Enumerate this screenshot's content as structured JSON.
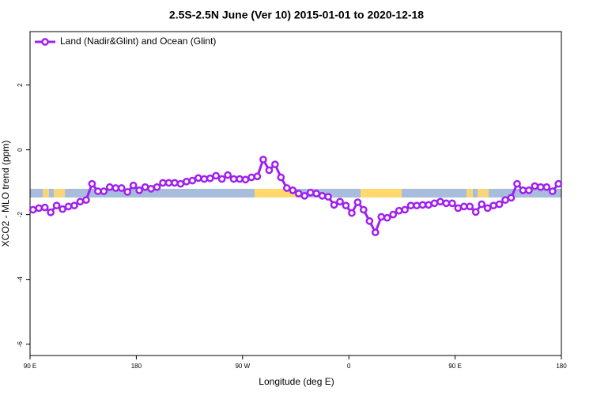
{
  "chart_data": {
    "type": "line",
    "title": "2.5S-2.5N June (Ver 10)   2015-01-01 to 2020-12-18",
    "x_label": "Longitude (deg E)",
    "y_label": "XCO2 - MLO trend (ppm)",
    "xlim": [
      90,
      540
    ],
    "xticks": [
      {
        "value": 90,
        "label": "90 E"
      },
      180,
      {
        "value": 270,
        "label": "90 W"
      },
      {
        "value": 360,
        "label": "0"
      },
      {
        "value": 450,
        "label": "90 E"
      },
      {
        "value": 540,
        "label": "180"
      }
    ],
    "ylim": [
      -6.35,
      3.65
    ],
    "yticks": [
      -6,
      -4,
      -2,
      0,
      2
    ],
    "grid": false,
    "legend": "top-left",
    "x": [
      92.5,
      97.5,
      102.5,
      107.5,
      112.5,
      117.5,
      122.5,
      127.5,
      132.5,
      137.5,
      142.5,
      147.5,
      152.5,
      157.5,
      162.5,
      167.5,
      172.5,
      177.5,
      182.5,
      187.5,
      192.5,
      197.5,
      202.5,
      207.5,
      212.5,
      217.5,
      222.5,
      227.5,
      232.5,
      237.5,
      242.5,
      247.5,
      252.5,
      257.5,
      262.5,
      267.5,
      272.5,
      277.5,
      282.5,
      287.5,
      292.5,
      297.5,
      302.5,
      307.5,
      312.5,
      317.5,
      322.5,
      327.5,
      332.5,
      337.5,
      342.5,
      347.5,
      352.5,
      357.5,
      362.5,
      367.5,
      372.5,
      377.5,
      382.5,
      387.5,
      392.5,
      397.5,
      402.5,
      407.5,
      412.5,
      417.5,
      422.5,
      427.5,
      432.5,
      437.5,
      442.5,
      447.5,
      452.5,
      457.5,
      462.5,
      467.5,
      472.5,
      477.5,
      482.5,
      487.5,
      492.5,
      497.5,
      502.5,
      507.5,
      512.5,
      517.5,
      522.5,
      527.5,
      532.5,
      537.5
    ],
    "series": [
      {
        "name": "Land (Nadir&Glint) and Ocean (Glint)",
        "color": "#a020f0",
        "values": [
          -1.85,
          -1.8,
          -1.78,
          -1.93,
          -1.72,
          -1.83,
          -1.75,
          -1.72,
          -1.6,
          -1.55,
          -1.05,
          -1.28,
          -1.28,
          -1.15,
          -1.18,
          -1.18,
          -1.3,
          -1.1,
          -1.25,
          -1.15,
          -1.2,
          -1.15,
          -1.02,
          -1.02,
          -1.02,
          -1.05,
          -0.98,
          -0.95,
          -0.87,
          -0.9,
          -0.88,
          -0.8,
          -0.9,
          -0.78,
          -0.9,
          -0.9,
          -0.92,
          -0.85,
          -0.82,
          -0.3,
          -0.63,
          -0.45,
          -0.85,
          -1.18,
          -1.25,
          -1.35,
          -1.42,
          -1.32,
          -1.35,
          -1.42,
          -1.45,
          -1.7,
          -1.6,
          -1.72,
          -1.95,
          -1.62,
          -1.85,
          -2.2,
          -2.55,
          -2.07,
          -2.1,
          -2.0,
          -1.88,
          -1.85,
          -1.72,
          -1.72,
          -1.7,
          -1.7,
          -1.65,
          -1.6,
          -1.65,
          -1.65,
          -1.8,
          -1.75,
          -1.75,
          -1.92,
          -1.68,
          -1.8,
          -1.72,
          -1.68,
          -1.55,
          -1.48,
          -1.05,
          -1.25,
          -1.25,
          -1.12,
          -1.15,
          -1.15,
          -1.28,
          -1.05
        ]
      }
    ]
  }
}
